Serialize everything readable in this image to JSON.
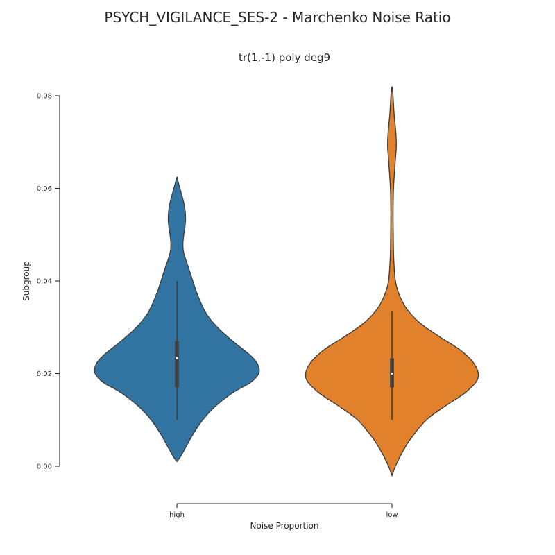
{
  "chart_data": {
    "type": "violin",
    "title": "PSYCH_VIGILANCE_SES-2 - Marchenko Noise Ratio",
    "subtitle": "tr(1,-1) poly deg9",
    "xlabel": "Noise Proportion",
    "ylabel": "Subgroup",
    "ylim": [
      -0.003,
      0.083
    ],
    "yticks": [
      0.0,
      0.02,
      0.04,
      0.06,
      0.08
    ],
    "ytick_labels": [
      "0.00",
      "0.02",
      "0.04",
      "0.06",
      "0.08"
    ],
    "categories": [
      "high",
      "low"
    ],
    "grid": false,
    "series": [
      {
        "category": "high",
        "color": "#3274a1",
        "box": {
          "whisker_low": 0.01,
          "q1": 0.017,
          "median": 0.0233,
          "q3": 0.027,
          "whisker_high": 0.04
        },
        "density": [
          [
            0.001,
            0.0
          ],
          [
            0.002,
            0.04
          ],
          [
            0.004,
            0.1
          ],
          [
            0.007,
            0.19
          ],
          [
            0.01,
            0.3
          ],
          [
            0.013,
            0.45
          ],
          [
            0.016,
            0.66
          ],
          [
            0.018,
            0.85
          ],
          [
            0.02,
            0.95
          ],
          [
            0.022,
            0.94
          ],
          [
            0.024,
            0.85
          ],
          [
            0.027,
            0.65
          ],
          [
            0.03,
            0.47
          ],
          [
            0.033,
            0.34
          ],
          [
            0.037,
            0.24
          ],
          [
            0.042,
            0.15
          ],
          [
            0.046,
            0.08
          ],
          [
            0.048,
            0.07
          ],
          [
            0.05,
            0.08
          ],
          [
            0.053,
            0.1
          ],
          [
            0.056,
            0.09
          ],
          [
            0.059,
            0.05
          ],
          [
            0.061,
            0.02
          ],
          [
            0.0625,
            0.0
          ]
        ]
      },
      {
        "category": "low",
        "color": "#e1812c",
        "box": {
          "whisker_low": 0.01,
          "q1": 0.017,
          "median": 0.02,
          "q3": 0.0233,
          "whisker_high": 0.0335
        },
        "density": [
          [
            -0.002,
            0.0
          ],
          [
            0.0,
            0.04
          ],
          [
            0.003,
            0.12
          ],
          [
            0.006,
            0.22
          ],
          [
            0.01,
            0.4
          ],
          [
            0.013,
            0.62
          ],
          [
            0.016,
            0.86
          ],
          [
            0.019,
            1.0
          ],
          [
            0.022,
            0.96
          ],
          [
            0.025,
            0.8
          ],
          [
            0.028,
            0.55
          ],
          [
            0.031,
            0.32
          ],
          [
            0.034,
            0.17
          ],
          [
            0.037,
            0.085
          ],
          [
            0.04,
            0.04
          ],
          [
            0.045,
            0.02
          ],
          [
            0.05,
            0.015
          ],
          [
            0.055,
            0.013
          ],
          [
            0.06,
            0.018
          ],
          [
            0.065,
            0.035
          ],
          [
            0.069,
            0.05
          ],
          [
            0.072,
            0.045
          ],
          [
            0.076,
            0.025
          ],
          [
            0.08,
            0.012
          ],
          [
            0.082,
            0.0
          ]
        ]
      }
    ]
  }
}
